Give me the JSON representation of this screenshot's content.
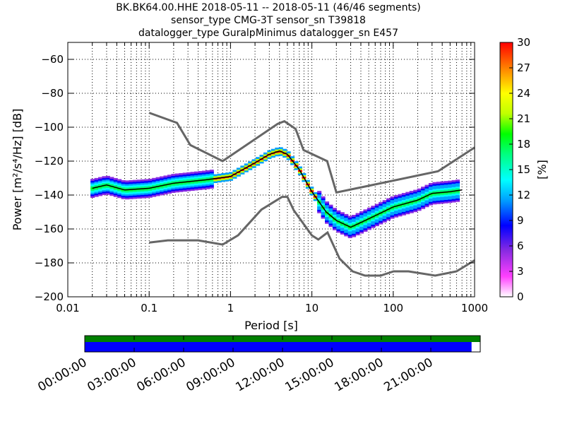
{
  "chart_data": {
    "type": "heatmap",
    "title_lines": [
      "BK.BK64.00.HHE   2018-05-11 -- 2018-05-11  (46/46 segments)",
      "sensor_type CMG-3T sensor_sn T39818",
      "datalogger_type GuralpMinimus datalogger_sn E457"
    ],
    "xlabel": "Period [s]",
    "ylabel": "Power [m²/s⁴/Hz] [dB]",
    "x_scale": "log",
    "xlim": [
      0.01,
      1000
    ],
    "ylim": [
      -200,
      -50
    ],
    "xticks": [
      {
        "value": 0.01,
        "label": "0.01"
      },
      {
        "value": 0.1,
        "label": "0.1"
      },
      {
        "value": 1,
        "label": "1"
      },
      {
        "value": 10,
        "label": "10"
      },
      {
        "value": 100,
        "label": "100"
      },
      {
        "value": 1000,
        "label": "1000"
      }
    ],
    "yticks": [
      {
        "value": -60,
        "label": "−60"
      },
      {
        "value": -80,
        "label": "−80"
      },
      {
        "value": -100,
        "label": "−100"
      },
      {
        "value": -120,
        "label": "−120"
      },
      {
        "value": -140,
        "label": "−140"
      },
      {
        "value": -160,
        "label": "−160"
      },
      {
        "value": -180,
        "label": "−180"
      },
      {
        "value": -200,
        "label": "−200"
      }
    ],
    "grid": true,
    "colorbar": {
      "label": "[%]",
      "range": [
        0,
        30
      ],
      "ticks": [
        "0",
        "3",
        "6",
        "9",
        "12",
        "15",
        "18",
        "21",
        "24",
        "27",
        "30"
      ]
    },
    "series": [
      {
        "role": "noise-model-high",
        "color": "#666666",
        "x": [
          0.1,
          0.22,
          0.32,
          0.8,
          3.8,
          4.6,
          6.3,
          7.9,
          15.4,
          20,
          354.8,
          1000
        ],
        "y": [
          -91.5,
          -97.4,
          -110.5,
          -120,
          -98,
          -96.5,
          -101,
          -113.5,
          -120,
          -138.5,
          -126,
          -112
        ]
      },
      {
        "role": "noise-model-low",
        "color": "#666666",
        "x": [
          0.1,
          0.17,
          0.4,
          0.8,
          1.24,
          2.4,
          4.3,
          5,
          6,
          10,
          12,
          15.6,
          21.9,
          31.6,
          45,
          70,
          101,
          154,
          328,
          600,
          1000
        ],
        "y": [
          -168,
          -166.7,
          -166.7,
          -169.2,
          -163.7,
          -148.6,
          -141.1,
          -141.1,
          -149,
          -163.8,
          -166.2,
          -162.1,
          -177.5,
          -185,
          -187.5,
          -187.5,
          -185,
          -185,
          -187.5,
          -185,
          -178.5
        ]
      },
      {
        "role": "psd-median",
        "color": "#000000",
        "x": [
          0.02,
          0.03,
          0.05,
          0.1,
          0.2,
          0.5,
          1,
          2,
          3,
          4,
          5,
          7,
          10,
          15,
          20,
          30,
          50,
          100,
          200,
          300,
          500,
          700
        ],
        "y": [
          -136,
          -134,
          -137,
          -136,
          -133,
          -131,
          -129,
          -121,
          -116,
          -114,
          -116,
          -125,
          -138,
          -150,
          -155,
          -159,
          -154,
          -147,
          -143,
          -139,
          -138,
          -137
        ]
      }
    ],
    "timeline": {
      "ticks": [
        "00:00:00",
        "03:00:00",
        "06:00:00",
        "09:00:00",
        "12:00:00",
        "15:00:00",
        "18:00:00",
        "21:00:00"
      ],
      "upper_coverage": 1.0,
      "lower_coverage": 0.978,
      "upper_color": "#008000",
      "lower_color": "#0000ff"
    }
  }
}
